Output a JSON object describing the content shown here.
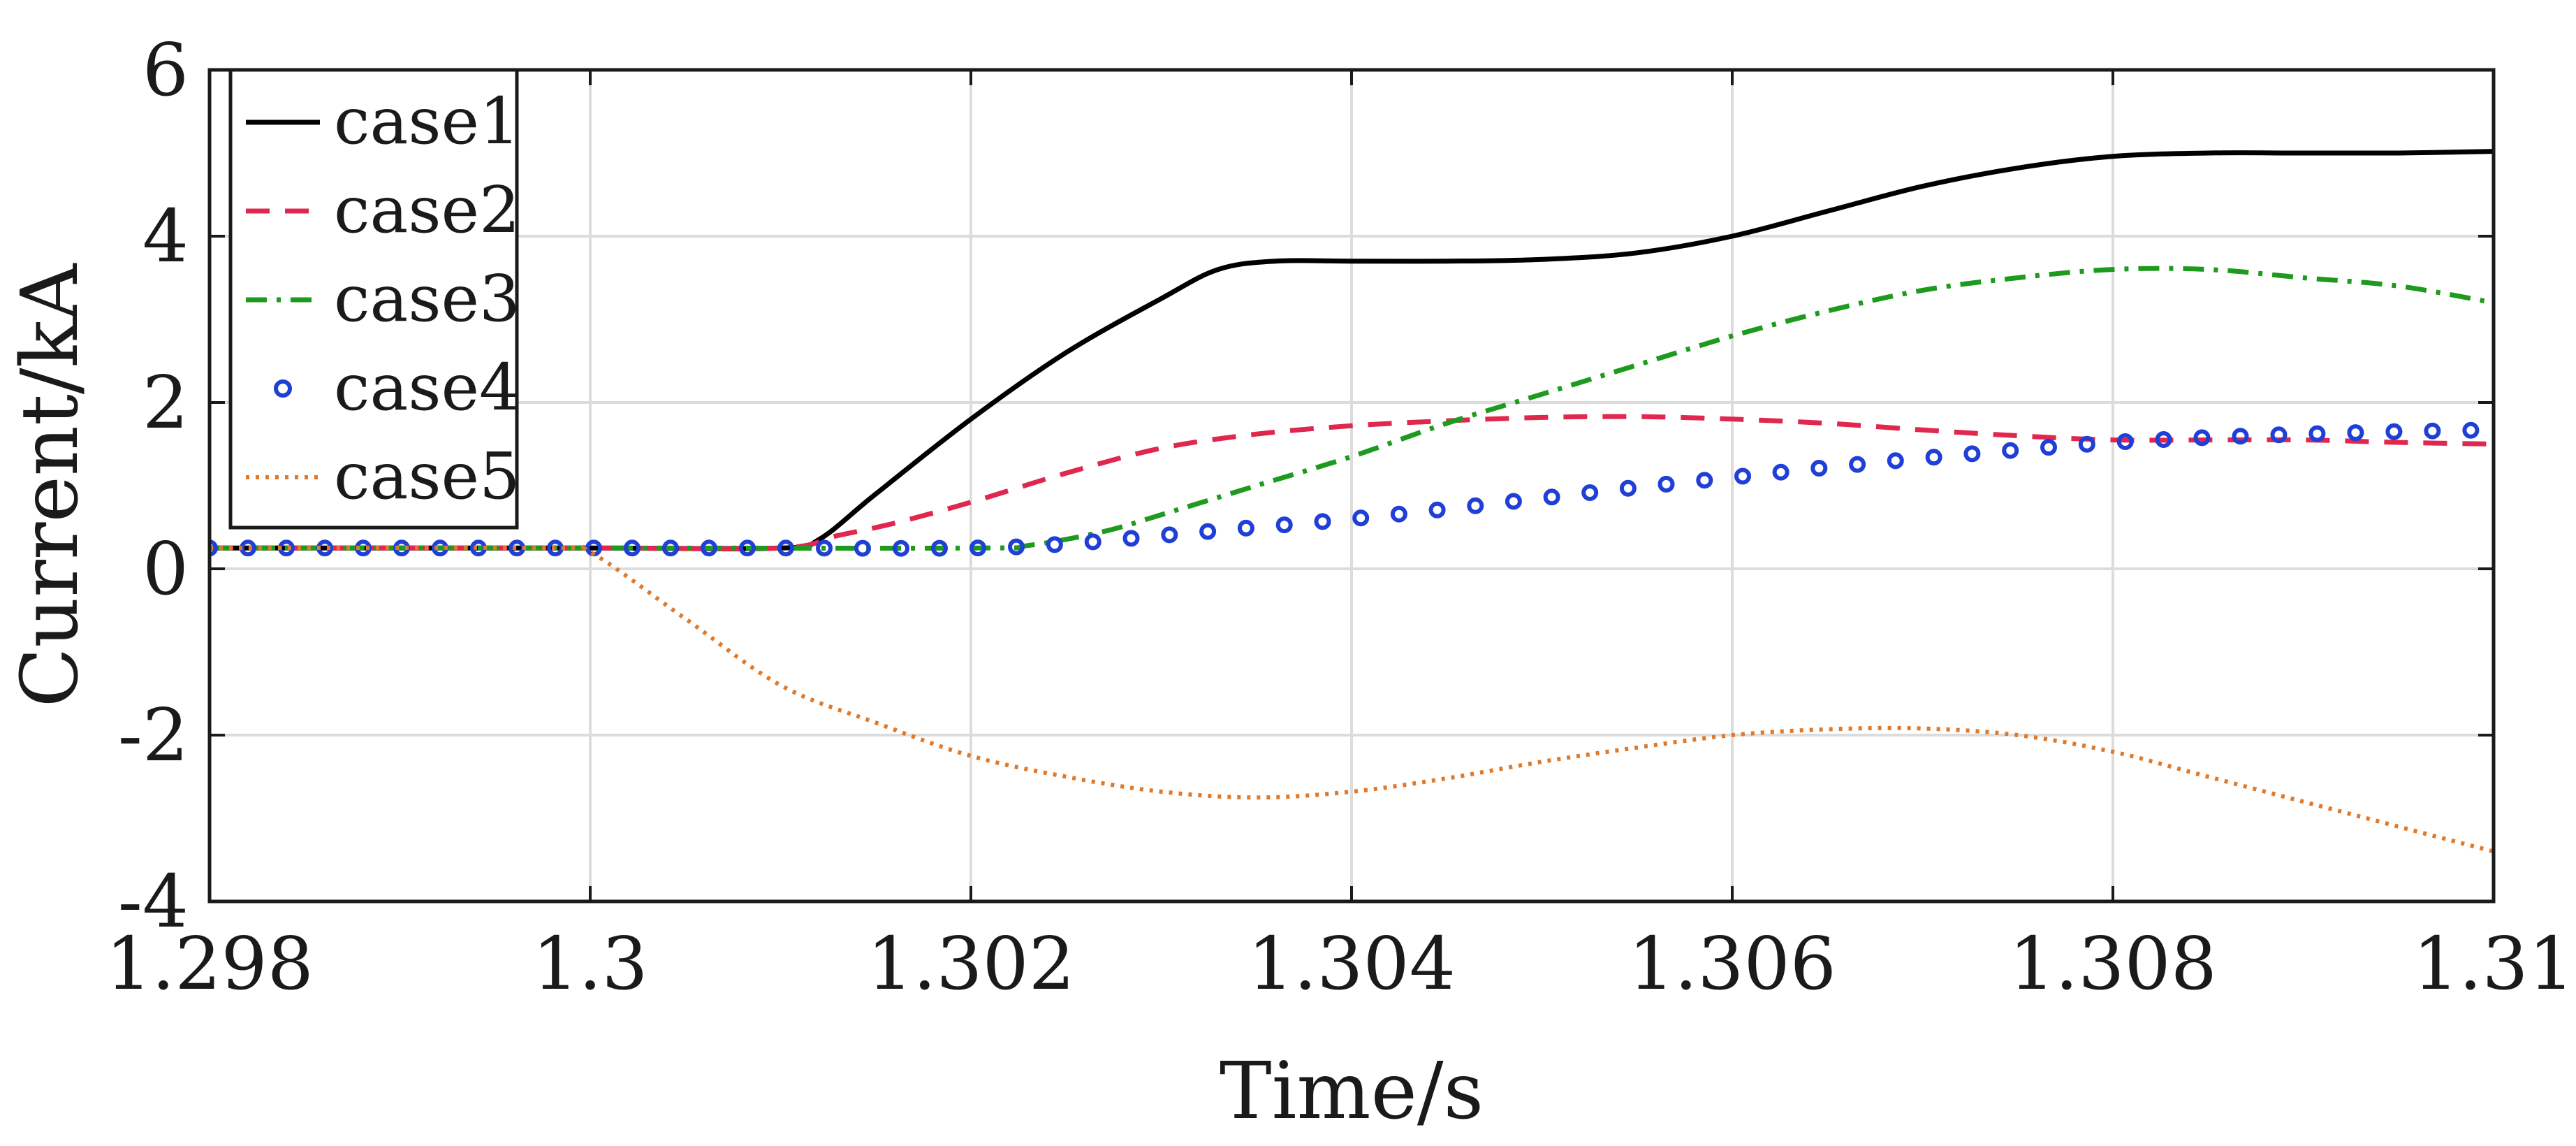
{
  "chart_data": {
    "type": "line",
    "title": "",
    "xlabel": "Time/s",
    "ylabel": "Current/kA",
    "xlim": [
      1.298,
      1.31
    ],
    "ylim": [
      -4,
      6
    ],
    "xticks": [
      1.298,
      1.3,
      1.302,
      1.304,
      1.306,
      1.308,
      1.31
    ],
    "xtick_labels": [
      "1.298",
      "1.3",
      "1.302",
      "1.304",
      "1.306",
      "1.308",
      "1.31"
    ],
    "yticks": [
      -4,
      -2,
      0,
      2,
      4,
      6
    ],
    "ytick_labels": [
      "-4",
      "-2",
      "0",
      "2",
      "4",
      "6"
    ],
    "grid": true,
    "legend_position": "top-left",
    "series": [
      {
        "name": "case1",
        "color": "#000000",
        "style": "solid",
        "points": [
          [
            1.298,
            0.25
          ],
          [
            1.3,
            0.25
          ],
          [
            1.301,
            0.25
          ],
          [
            1.3012,
            0.35
          ],
          [
            1.3015,
            0.9
          ],
          [
            1.302,
            1.8
          ],
          [
            1.3025,
            2.6
          ],
          [
            1.303,
            3.25
          ],
          [
            1.3033,
            3.6
          ],
          [
            1.3036,
            3.7
          ],
          [
            1.304,
            3.7
          ],
          [
            1.3045,
            3.7
          ],
          [
            1.305,
            3.72
          ],
          [
            1.3055,
            3.8
          ],
          [
            1.306,
            4.0
          ],
          [
            1.3065,
            4.3
          ],
          [
            1.307,
            4.6
          ],
          [
            1.3075,
            4.82
          ],
          [
            1.308,
            4.96
          ],
          [
            1.3085,
            5.0
          ],
          [
            1.309,
            5.0
          ],
          [
            1.3095,
            5.0
          ],
          [
            1.31,
            5.02
          ]
        ]
      },
      {
        "name": "case2",
        "color": "#e0284f",
        "style": "dashed",
        "points": [
          [
            1.298,
            0.25
          ],
          [
            1.3,
            0.25
          ],
          [
            1.301,
            0.25
          ],
          [
            1.3013,
            0.4
          ],
          [
            1.3016,
            0.55
          ],
          [
            1.302,
            0.8
          ],
          [
            1.3025,
            1.15
          ],
          [
            1.303,
            1.45
          ],
          [
            1.3035,
            1.62
          ],
          [
            1.304,
            1.72
          ],
          [
            1.3045,
            1.78
          ],
          [
            1.305,
            1.82
          ],
          [
            1.3055,
            1.83
          ],
          [
            1.306,
            1.8
          ],
          [
            1.3065,
            1.75
          ],
          [
            1.307,
            1.67
          ],
          [
            1.3075,
            1.6
          ],
          [
            1.308,
            1.55
          ],
          [
            1.3085,
            1.55
          ],
          [
            1.309,
            1.55
          ],
          [
            1.3095,
            1.52
          ],
          [
            1.31,
            1.5
          ]
        ]
      },
      {
        "name": "case3",
        "color": "#1e9a1e",
        "style": "dashdot",
        "points": [
          [
            1.298,
            0.25
          ],
          [
            1.3,
            0.25
          ],
          [
            1.302,
            0.25
          ],
          [
            1.3023,
            0.28
          ],
          [
            1.3027,
            0.45
          ],
          [
            1.303,
            0.65
          ],
          [
            1.3035,
            1.0
          ],
          [
            1.304,
            1.35
          ],
          [
            1.3045,
            1.75
          ],
          [
            1.305,
            2.1
          ],
          [
            1.3055,
            2.45
          ],
          [
            1.306,
            2.8
          ],
          [
            1.3065,
            3.1
          ],
          [
            1.307,
            3.35
          ],
          [
            1.3075,
            3.5
          ],
          [
            1.308,
            3.6
          ],
          [
            1.3085,
            3.6
          ],
          [
            1.309,
            3.5
          ],
          [
            1.3095,
            3.4
          ],
          [
            1.31,
            3.2
          ]
        ]
      },
      {
        "name": "case4",
        "color": "#1f3fd6",
        "style": "circles",
        "points": [
          [
            1.298,
            0.25
          ],
          [
            1.299,
            0.25
          ],
          [
            1.3,
            0.25
          ],
          [
            1.301,
            0.25
          ],
          [
            1.302,
            0.25
          ],
          [
            1.3025,
            0.3
          ],
          [
            1.303,
            0.4
          ],
          [
            1.3035,
            0.5
          ],
          [
            1.304,
            0.6
          ],
          [
            1.3045,
            0.72
          ],
          [
            1.305,
            0.85
          ],
          [
            1.3055,
            0.98
          ],
          [
            1.306,
            1.1
          ],
          [
            1.3065,
            1.22
          ],
          [
            1.307,
            1.33
          ],
          [
            1.3075,
            1.43
          ],
          [
            1.308,
            1.52
          ],
          [
            1.3085,
            1.58
          ],
          [
            1.309,
            1.62
          ],
          [
            1.3095,
            1.65
          ],
          [
            1.31,
            1.67
          ]
        ]
      },
      {
        "name": "case5",
        "color": "#e07a2a",
        "style": "dotted",
        "points": [
          [
            1.298,
            0.25
          ],
          [
            1.2998,
            0.25
          ],
          [
            1.3,
            0.2
          ],
          [
            1.3005,
            -0.6
          ],
          [
            1.301,
            -1.4
          ],
          [
            1.3015,
            -1.85
          ],
          [
            1.302,
            -2.25
          ],
          [
            1.3025,
            -2.5
          ],
          [
            1.303,
            -2.68
          ],
          [
            1.3035,
            -2.75
          ],
          [
            1.304,
            -2.68
          ],
          [
            1.3045,
            -2.52
          ],
          [
            1.305,
            -2.32
          ],
          [
            1.3055,
            -2.15
          ],
          [
            1.306,
            -2.0
          ],
          [
            1.3065,
            -1.93
          ],
          [
            1.307,
            -1.92
          ],
          [
            1.3075,
            -2.0
          ],
          [
            1.308,
            -2.2
          ],
          [
            1.3085,
            -2.5
          ],
          [
            1.309,
            -2.8
          ],
          [
            1.3095,
            -3.1
          ],
          [
            1.31,
            -3.4
          ]
        ]
      }
    ]
  }
}
